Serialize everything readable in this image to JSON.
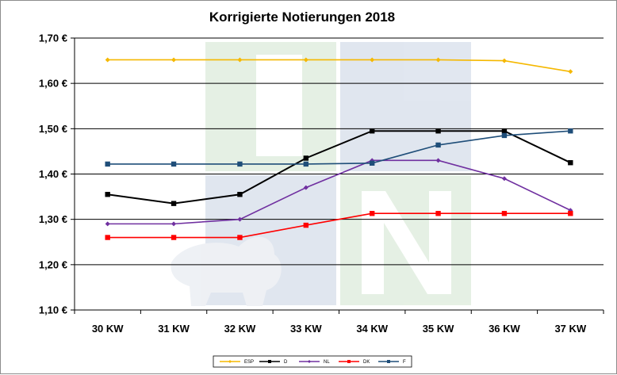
{
  "chart_data": {
    "type": "line",
    "title": "Korrigierte Notierungen 2018",
    "categories": [
      "30 KW",
      "31 KW",
      "32 KW",
      "33 KW",
      "34 KW",
      "35 KW",
      "36 KW",
      "37 KW"
    ],
    "ylim": [
      1.1,
      1.7
    ],
    "yticks": [
      1.1,
      1.2,
      1.3,
      1.4,
      1.5,
      1.6,
      1.7
    ],
    "ytick_labels": [
      "1,10 €",
      "1,20 €",
      "1,30 €",
      "1,40 €",
      "1,50 €",
      "1,60 €",
      "1,70 €"
    ],
    "grid": true,
    "legend_position": "bottom",
    "series": [
      {
        "name": "ESP",
        "color": "#f5b800",
        "marker": "diamond",
        "values": [
          1.652,
          1.652,
          1.652,
          1.652,
          1.652,
          1.652,
          1.65,
          1.626
        ]
      },
      {
        "name": "D",
        "color": "#000000",
        "marker": "square",
        "values": [
          1.355,
          1.335,
          1.355,
          1.435,
          1.495,
          1.495,
          1.495,
          1.425
        ]
      },
      {
        "name": "NL",
        "color": "#7030a0",
        "marker": "diamond",
        "values": [
          1.29,
          1.29,
          1.3,
          1.37,
          1.43,
          1.43,
          1.39,
          1.32
        ]
      },
      {
        "name": "DK",
        "color": "#ff0000",
        "marker": "square",
        "values": [
          1.26,
          1.26,
          1.26,
          1.287,
          1.313,
          1.313,
          1.313,
          1.313
        ]
      },
      {
        "name": "F",
        "color": "#1f4e79",
        "marker": "square",
        "values": [
          1.422,
          1.422,
          1.422,
          1.422,
          1.424,
          1.464,
          1.485,
          1.495
        ]
      }
    ]
  }
}
